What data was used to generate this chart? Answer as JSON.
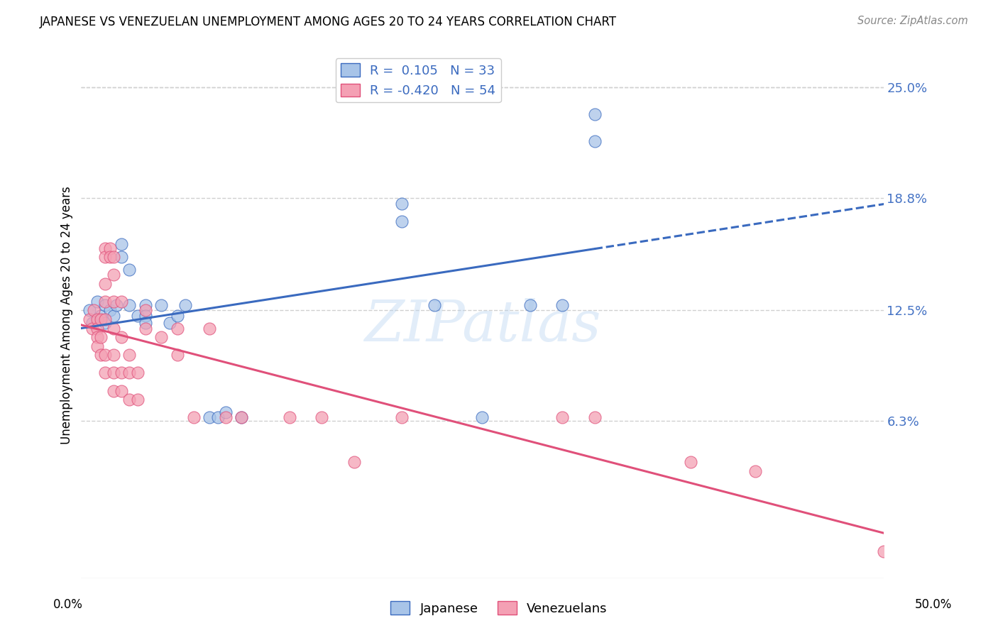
{
  "title": "JAPANESE VS VENEZUELAN UNEMPLOYMENT AMONG AGES 20 TO 24 YEARS CORRELATION CHART",
  "source": "Source: ZipAtlas.com",
  "ylabel": "Unemployment Among Ages 20 to 24 years",
  "ytick_labels": [
    "25.0%",
    "18.8%",
    "12.5%",
    "6.3%"
  ],
  "ytick_values": [
    0.25,
    0.188,
    0.125,
    0.063
  ],
  "xlim": [
    0.0,
    0.5
  ],
  "ylim": [
    -0.025,
    0.27
  ],
  "background_color": "#ffffff",
  "grid_color": "#d0d0d0",
  "japanese_color": "#a8c4e8",
  "venezuelan_color": "#f4a0b4",
  "japanese_line_color": "#3a6abf",
  "venezuelan_line_color": "#e0507a",
  "watermark": "ZIPatlas",
  "japanese_points": [
    [
      0.005,
      0.125
    ],
    [
      0.007,
      0.118
    ],
    [
      0.01,
      0.13
    ],
    [
      0.012,
      0.122
    ],
    [
      0.015,
      0.118
    ],
    [
      0.015,
      0.128
    ],
    [
      0.018,
      0.125
    ],
    [
      0.02,
      0.122
    ],
    [
      0.022,
      0.128
    ],
    [
      0.025,
      0.155
    ],
    [
      0.025,
      0.162
    ],
    [
      0.03,
      0.148
    ],
    [
      0.03,
      0.128
    ],
    [
      0.035,
      0.122
    ],
    [
      0.04,
      0.128
    ],
    [
      0.04,
      0.122
    ],
    [
      0.04,
      0.118
    ],
    [
      0.05,
      0.128
    ],
    [
      0.055,
      0.118
    ],
    [
      0.06,
      0.122
    ],
    [
      0.065,
      0.128
    ],
    [
      0.08,
      0.065
    ],
    [
      0.085,
      0.065
    ],
    [
      0.09,
      0.068
    ],
    [
      0.1,
      0.065
    ],
    [
      0.2,
      0.185
    ],
    [
      0.2,
      0.175
    ],
    [
      0.22,
      0.128
    ],
    [
      0.25,
      0.065
    ],
    [
      0.28,
      0.128
    ],
    [
      0.3,
      0.128
    ],
    [
      0.32,
      0.22
    ],
    [
      0.32,
      0.235
    ]
  ],
  "venezuelan_points": [
    [
      0.005,
      0.12
    ],
    [
      0.007,
      0.115
    ],
    [
      0.008,
      0.125
    ],
    [
      0.01,
      0.12
    ],
    [
      0.01,
      0.115
    ],
    [
      0.01,
      0.11
    ],
    [
      0.01,
      0.105
    ],
    [
      0.012,
      0.12
    ],
    [
      0.012,
      0.11
    ],
    [
      0.012,
      0.1
    ],
    [
      0.015,
      0.16
    ],
    [
      0.015,
      0.155
    ],
    [
      0.015,
      0.14
    ],
    [
      0.015,
      0.13
    ],
    [
      0.015,
      0.12
    ],
    [
      0.015,
      0.1
    ],
    [
      0.015,
      0.09
    ],
    [
      0.018,
      0.16
    ],
    [
      0.018,
      0.155
    ],
    [
      0.02,
      0.155
    ],
    [
      0.02,
      0.145
    ],
    [
      0.02,
      0.13
    ],
    [
      0.02,
      0.115
    ],
    [
      0.02,
      0.1
    ],
    [
      0.02,
      0.09
    ],
    [
      0.02,
      0.08
    ],
    [
      0.025,
      0.13
    ],
    [
      0.025,
      0.11
    ],
    [
      0.025,
      0.09
    ],
    [
      0.025,
      0.08
    ],
    [
      0.03,
      0.1
    ],
    [
      0.03,
      0.09
    ],
    [
      0.03,
      0.075
    ],
    [
      0.035,
      0.09
    ],
    [
      0.035,
      0.075
    ],
    [
      0.04,
      0.125
    ],
    [
      0.04,
      0.115
    ],
    [
      0.05,
      0.11
    ],
    [
      0.06,
      0.115
    ],
    [
      0.06,
      0.1
    ],
    [
      0.07,
      0.065
    ],
    [
      0.08,
      0.115
    ],
    [
      0.09,
      0.065
    ],
    [
      0.1,
      0.065
    ],
    [
      0.13,
      0.065
    ],
    [
      0.15,
      0.065
    ],
    [
      0.17,
      0.04
    ],
    [
      0.2,
      0.065
    ],
    [
      0.3,
      0.065
    ],
    [
      0.32,
      0.065
    ],
    [
      0.38,
      0.04
    ],
    [
      0.42,
      0.035
    ],
    [
      0.5,
      -0.01
    ]
  ]
}
